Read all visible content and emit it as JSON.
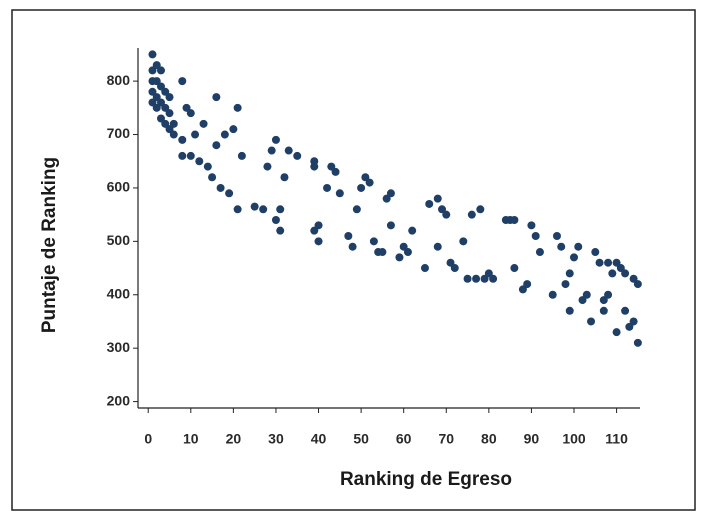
{
  "chart_data": {
    "type": "scatter",
    "x_label": "Ranking de Egreso",
    "y_label": "Puntaje de Ranking",
    "x": [
      1,
      1,
      1,
      1,
      1,
      2,
      2,
      2,
      2,
      3,
      3,
      3,
      3,
      4,
      4,
      4,
      5,
      5,
      5,
      6,
      6,
      8,
      8,
      9,
      8,
      10,
      10,
      11,
      12,
      13,
      14,
      15,
      16,
      16,
      17,
      18,
      19,
      20,
      21,
      21,
      22,
      25,
      27,
      28,
      29,
      30,
      30,
      31,
      31,
      32,
      33,
      35,
      39,
      39,
      39,
      40,
      40,
      42,
      43,
      44,
      45,
      47,
      48,
      49,
      50,
      51,
      52,
      53,
      54,
      55,
      56,
      57,
      57,
      59,
      60,
      61,
      62,
      65,
      66,
      68,
      68,
      69,
      70,
      71,
      72,
      74,
      75,
      76,
      77,
      78,
      79,
      80,
      81,
      84,
      85,
      86,
      86,
      88,
      89,
      90,
      91,
      92,
      95,
      96,
      97,
      98,
      99,
      99,
      100,
      101,
      102,
      103,
      104,
      105,
      106,
      107,
      107,
      108,
      108,
      109,
      110,
      110,
      111,
      112,
      112,
      113,
      114,
      114,
      115,
      115
    ],
    "values": [
      850,
      820,
      800,
      780,
      760,
      830,
      800,
      770,
      750,
      820,
      790,
      760,
      730,
      780,
      750,
      720,
      770,
      740,
      710,
      720,
      700,
      800,
      690,
      750,
      660,
      740,
      660,
      700,
      650,
      720,
      640,
      620,
      770,
      680,
      600,
      700,
      590,
      710,
      750,
      560,
      660,
      565,
      560,
      640,
      670,
      690,
      540,
      520,
      560,
      620,
      670,
      660,
      650,
      640,
      520,
      500,
      530,
      600,
      640,
      630,
      590,
      510,
      490,
      560,
      600,
      620,
      610,
      500,
      480,
      480,
      580,
      590,
      530,
      470,
      490,
      480,
      520,
      450,
      570,
      580,
      490,
      560,
      550,
      460,
      450,
      500,
      430,
      550,
      430,
      560,
      430,
      440,
      430,
      540,
      540,
      540,
      450,
      410,
      420,
      530,
      510,
      480,
      400,
      510,
      490,
      420,
      440,
      370,
      470,
      490,
      390,
      400,
      350,
      480,
      460,
      390,
      370,
      460,
      400,
      440,
      460,
      330,
      450,
      440,
      370,
      340,
      430,
      350,
      420,
      310
    ],
    "color": "#1f3f66",
    "xlim": [
      -2.4,
      115.5
    ],
    "ylim": [
      188,
      862
    ],
    "xticks": [
      0,
      10,
      20,
      30,
      40,
      50,
      60,
      70,
      80,
      90,
      100,
      110
    ],
    "yticks": [
      200,
      300,
      400,
      500,
      600,
      700,
      800
    ]
  }
}
